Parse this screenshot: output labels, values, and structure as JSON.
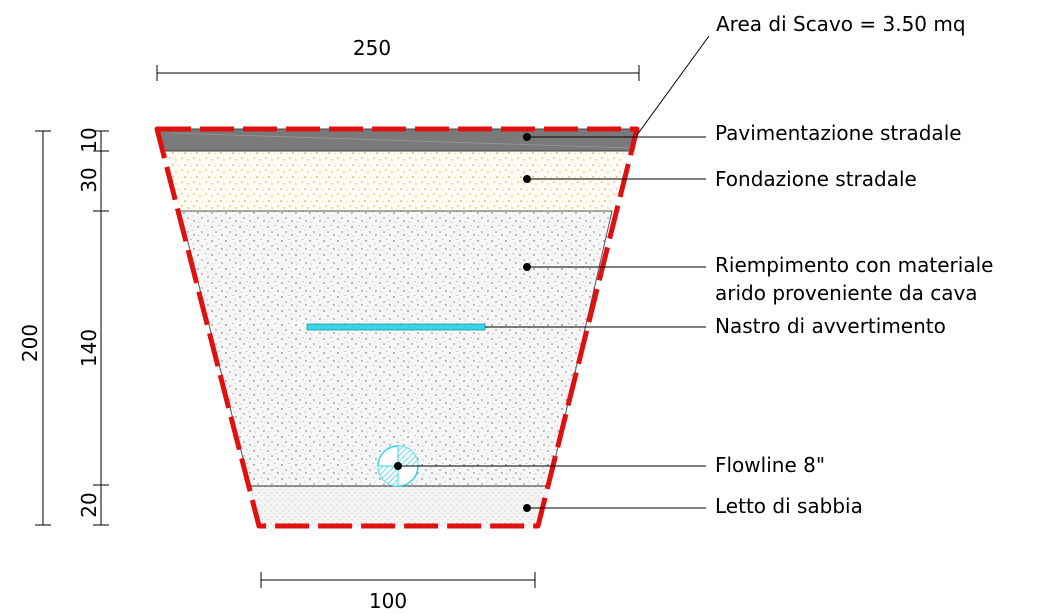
{
  "diagram": {
    "area_label": "Area di Scavo = 3.50 mq",
    "dimensions": {
      "top_width": "250",
      "bottom_width": "100",
      "total_height": "200",
      "layer_pavement": "10",
      "layer_foundation": "30",
      "layer_fill": "140",
      "layer_sand": "20"
    },
    "labels": {
      "pavement": "Pavimentazione stradale",
      "foundation": "Fondazione stradale",
      "fill_line1": "Riempimento con materiale",
      "fill_line2": "arido proveniente da cava",
      "warning_tape": "Nastro di avvertimento",
      "pipe": "Flowline 8\"",
      "sand_bed": "Letto di sabbia"
    },
    "colors": {
      "pavement": "#7a7a7a",
      "foundation_dots": "#e8a020",
      "excavation_outline": "#e01010",
      "warning_tape": "#36d6e6",
      "pipe": "#36d6e6"
    }
  }
}
